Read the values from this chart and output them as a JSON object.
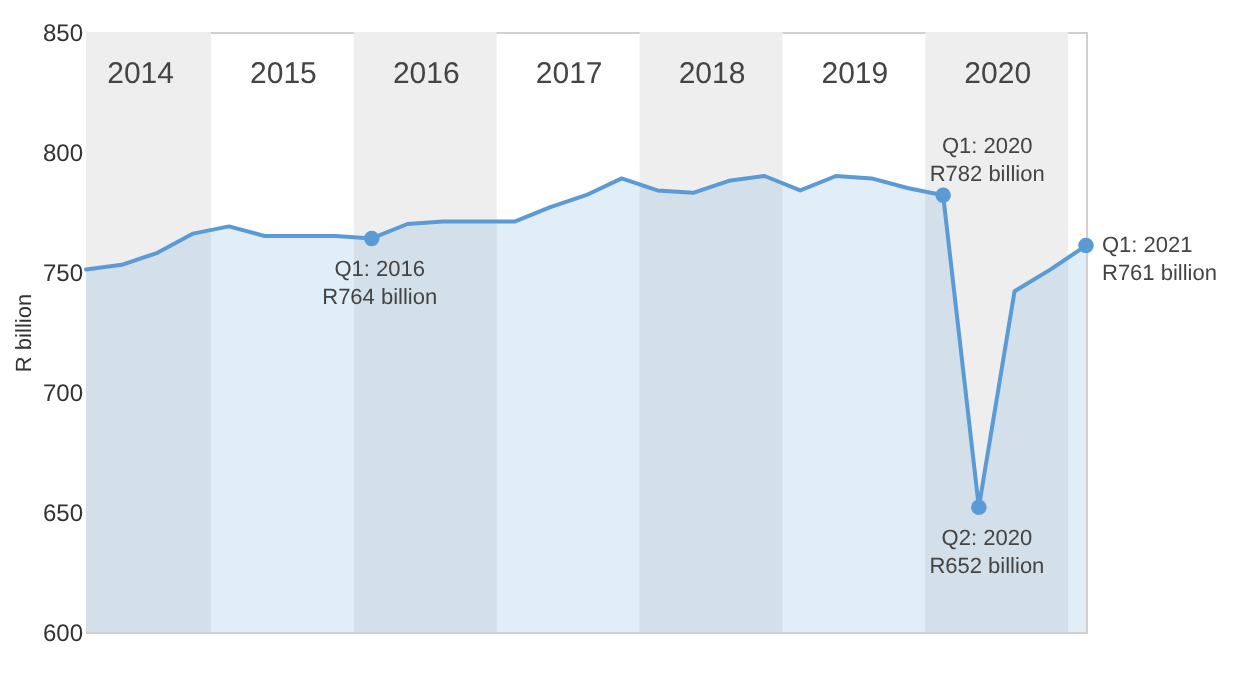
{
  "chart_data": {
    "type": "area",
    "ylabel": "R billion",
    "x": [
      2014,
      2014.25,
      2014.5,
      2014.75,
      2015,
      2015.25,
      2015.5,
      2015.75,
      2016,
      2016.25,
      2016.5,
      2016.75,
      2017,
      2017.25,
      2017.5,
      2017.75,
      2018,
      2018.25,
      2018.5,
      2018.75,
      2019,
      2019.25,
      2019.5,
      2019.75,
      2020,
      2020.25,
      2020.5,
      2020.75,
      2021
    ],
    "series": [
      {
        "color": "#5b9bd5",
        "values": [
          751,
          753,
          758,
          766,
          769,
          765,
          765,
          765,
          764,
          770,
          771,
          771,
          771,
          777,
          782,
          789,
          784,
          783,
          788,
          790,
          784,
          790,
          789,
          785,
          782,
          652,
          742,
          751,
          761
        ]
      }
    ],
    "xlim": [
      2014,
      2021
    ],
    "ylim": [
      600,
      850
    ],
    "yticks": [
      600,
      650,
      700,
      750,
      800,
      850
    ],
    "xticks": [
      {
        "value": 2014.375,
        "label": "2014"
      },
      {
        "value": 2015.375,
        "label": "2015"
      },
      {
        "value": 2016.375,
        "label": "2016"
      },
      {
        "value": 2017.375,
        "label": "2017"
      },
      {
        "value": 2018.375,
        "label": "2018"
      },
      {
        "value": 2019.375,
        "label": "2019"
      },
      {
        "value": 2020.375,
        "label": "2020"
      }
    ],
    "bands": [
      {
        "axis": "x",
        "from": 2014,
        "to": 2014.875,
        "color": "#eeeeee"
      },
      {
        "axis": "x",
        "from": 2015.875,
        "to": 2016.875,
        "color": "#eeeeee"
      },
      {
        "axis": "x",
        "from": 2017.875,
        "to": 2018.875,
        "color": "#eeeeee"
      },
      {
        "axis": "x",
        "from": 2019.875,
        "to": 2020.875,
        "color": "#eeeeee"
      }
    ],
    "annotations": [
      {
        "text": "Q1: 2016\nR764 billion",
        "x": 2016,
        "y": 764
      },
      {
        "text": "Q1: 2020\nR782 billion",
        "x": 2020,
        "y": 782
      },
      {
        "text": "Q2: 2020\nR652 billion",
        "x": 2020.25,
        "y": 652
      },
      {
        "text": "Q1: 2021\nR761 billion",
        "x": 2021,
        "y": 761
      }
    ],
    "grid": false
  }
}
